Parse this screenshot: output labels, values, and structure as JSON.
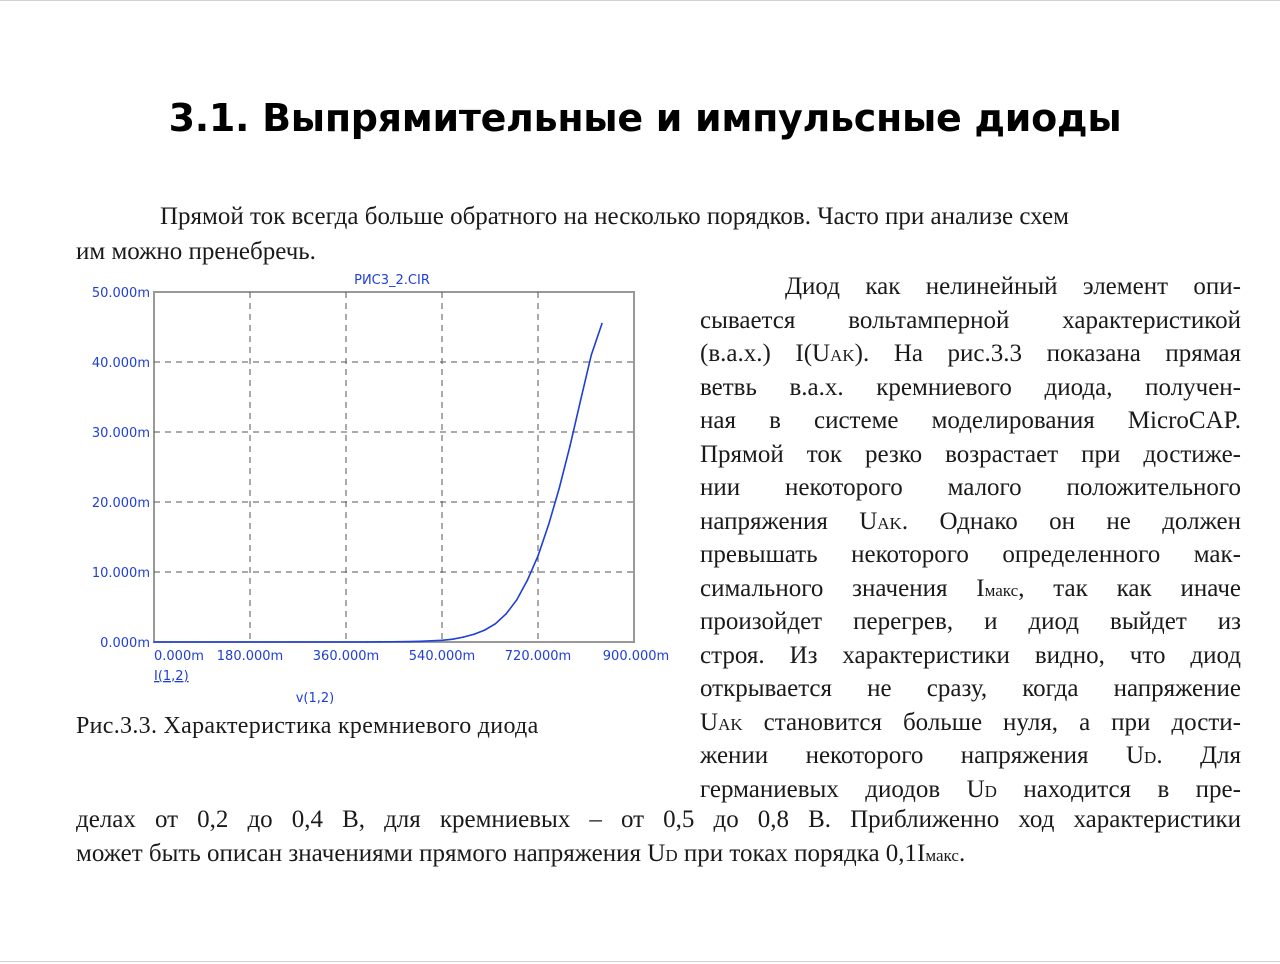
{
  "title": "3.1. Выпрямительные и импульсные диоды",
  "intro": {
    "line1": "Прямой ток всегда больше обратного на несколько порядков. Часто при анализе схем",
    "line2": "им можно пренебречь."
  },
  "side_text": [
    {
      "text": "Диод как нелинейный элемент опи-",
      "indent": true
    },
    {
      "text": "сывается вольтамперной характеристикой"
    },
    {
      "pre": "(в.а.х.) I(U",
      "sub": "AK",
      "post": "). На рис.3.3 показана прямая"
    },
    {
      "text": "ветвь в.а.х. кремниевого  диода, получен-"
    },
    {
      "text": "ная в системе моделирования MicroCAP."
    },
    {
      "text": "Прямой ток резко возрастает при достиже-"
    },
    {
      "text": "нии некоторого малого положительного"
    },
    {
      "pre": "напряжения U",
      "sub": "AK",
      "post": ". Однако он не должен"
    },
    {
      "text": "превышать некоторого определенного мак-"
    },
    {
      "pre": "симального значения I",
      "sub": "макс",
      "post": ", так как иначе"
    },
    {
      "text": "произойдет перегрев, и диод выйдет из"
    },
    {
      "text": "строя. Из характеристики видно, что диод"
    },
    {
      "text": "открывается не сразу, когда напряжение"
    },
    {
      "pre": "U",
      "sub": "AK",
      "post": " становится больше нуля, а при дости-"
    },
    {
      "pre": "жении некоторого напряжения U",
      "sub": "D",
      "post": ". Для"
    },
    {
      "pre": "германиевых диодов U",
      "sub": "D",
      "post": " находится в пре-"
    }
  ],
  "bottom": {
    "line1": "делах от 0,2 до 0,4 В, для кремниевых – от 0,5 до 0,8 В.  Приближенно ход характеристики",
    "line2_pre": "может быть описан значениями прямого напряжения U",
    "line2_sub1": "D",
    "line2_mid": " при токах порядка 0,1I",
    "line2_sub2": "макс",
    "line2_post": "."
  },
  "caption": "Рис.3.3. Характеристика кремниевого диода",
  "colors": {
    "plot": "#1f3fd6",
    "grid": "#555555",
    "frame": "#999999"
  },
  "chart_data": {
    "type": "line",
    "title": "РИС3_2.CIR",
    "xlabel": "v(1,2)",
    "ylabel": "I(1,2)",
    "xlim": [
      0,
      900
    ],
    "ylim": [
      0,
      50
    ],
    "x_ticks": [
      "0.000m",
      "180.000m",
      "360.000m",
      "540.000m",
      "720.000m",
      "900.000m"
    ],
    "y_ticks": [
      "0.000m",
      "10.000m",
      "20.000m",
      "30.000m",
      "40.000m",
      "50.000m"
    ],
    "x_tick_values": [
      0,
      180,
      360,
      540,
      720,
      900
    ],
    "y_tick_values": [
      0,
      10,
      20,
      30,
      40,
      50
    ],
    "grid": true,
    "series": [
      {
        "name": "I(1,2)",
        "x": [
          0,
          400,
          480,
          500,
          540,
          560,
          580,
          600,
          620,
          640,
          660,
          680,
          700,
          720,
          740,
          760,
          780,
          800,
          820,
          840
        ],
        "y": [
          0,
          0,
          0.05,
          0.1,
          0.25,
          0.4,
          0.7,
          1.1,
          1.7,
          2.6,
          4.0,
          6.0,
          8.8,
          12.3,
          16.8,
          22.0,
          28.0,
          34.6,
          41.0,
          45.5
        ]
      }
    ]
  }
}
